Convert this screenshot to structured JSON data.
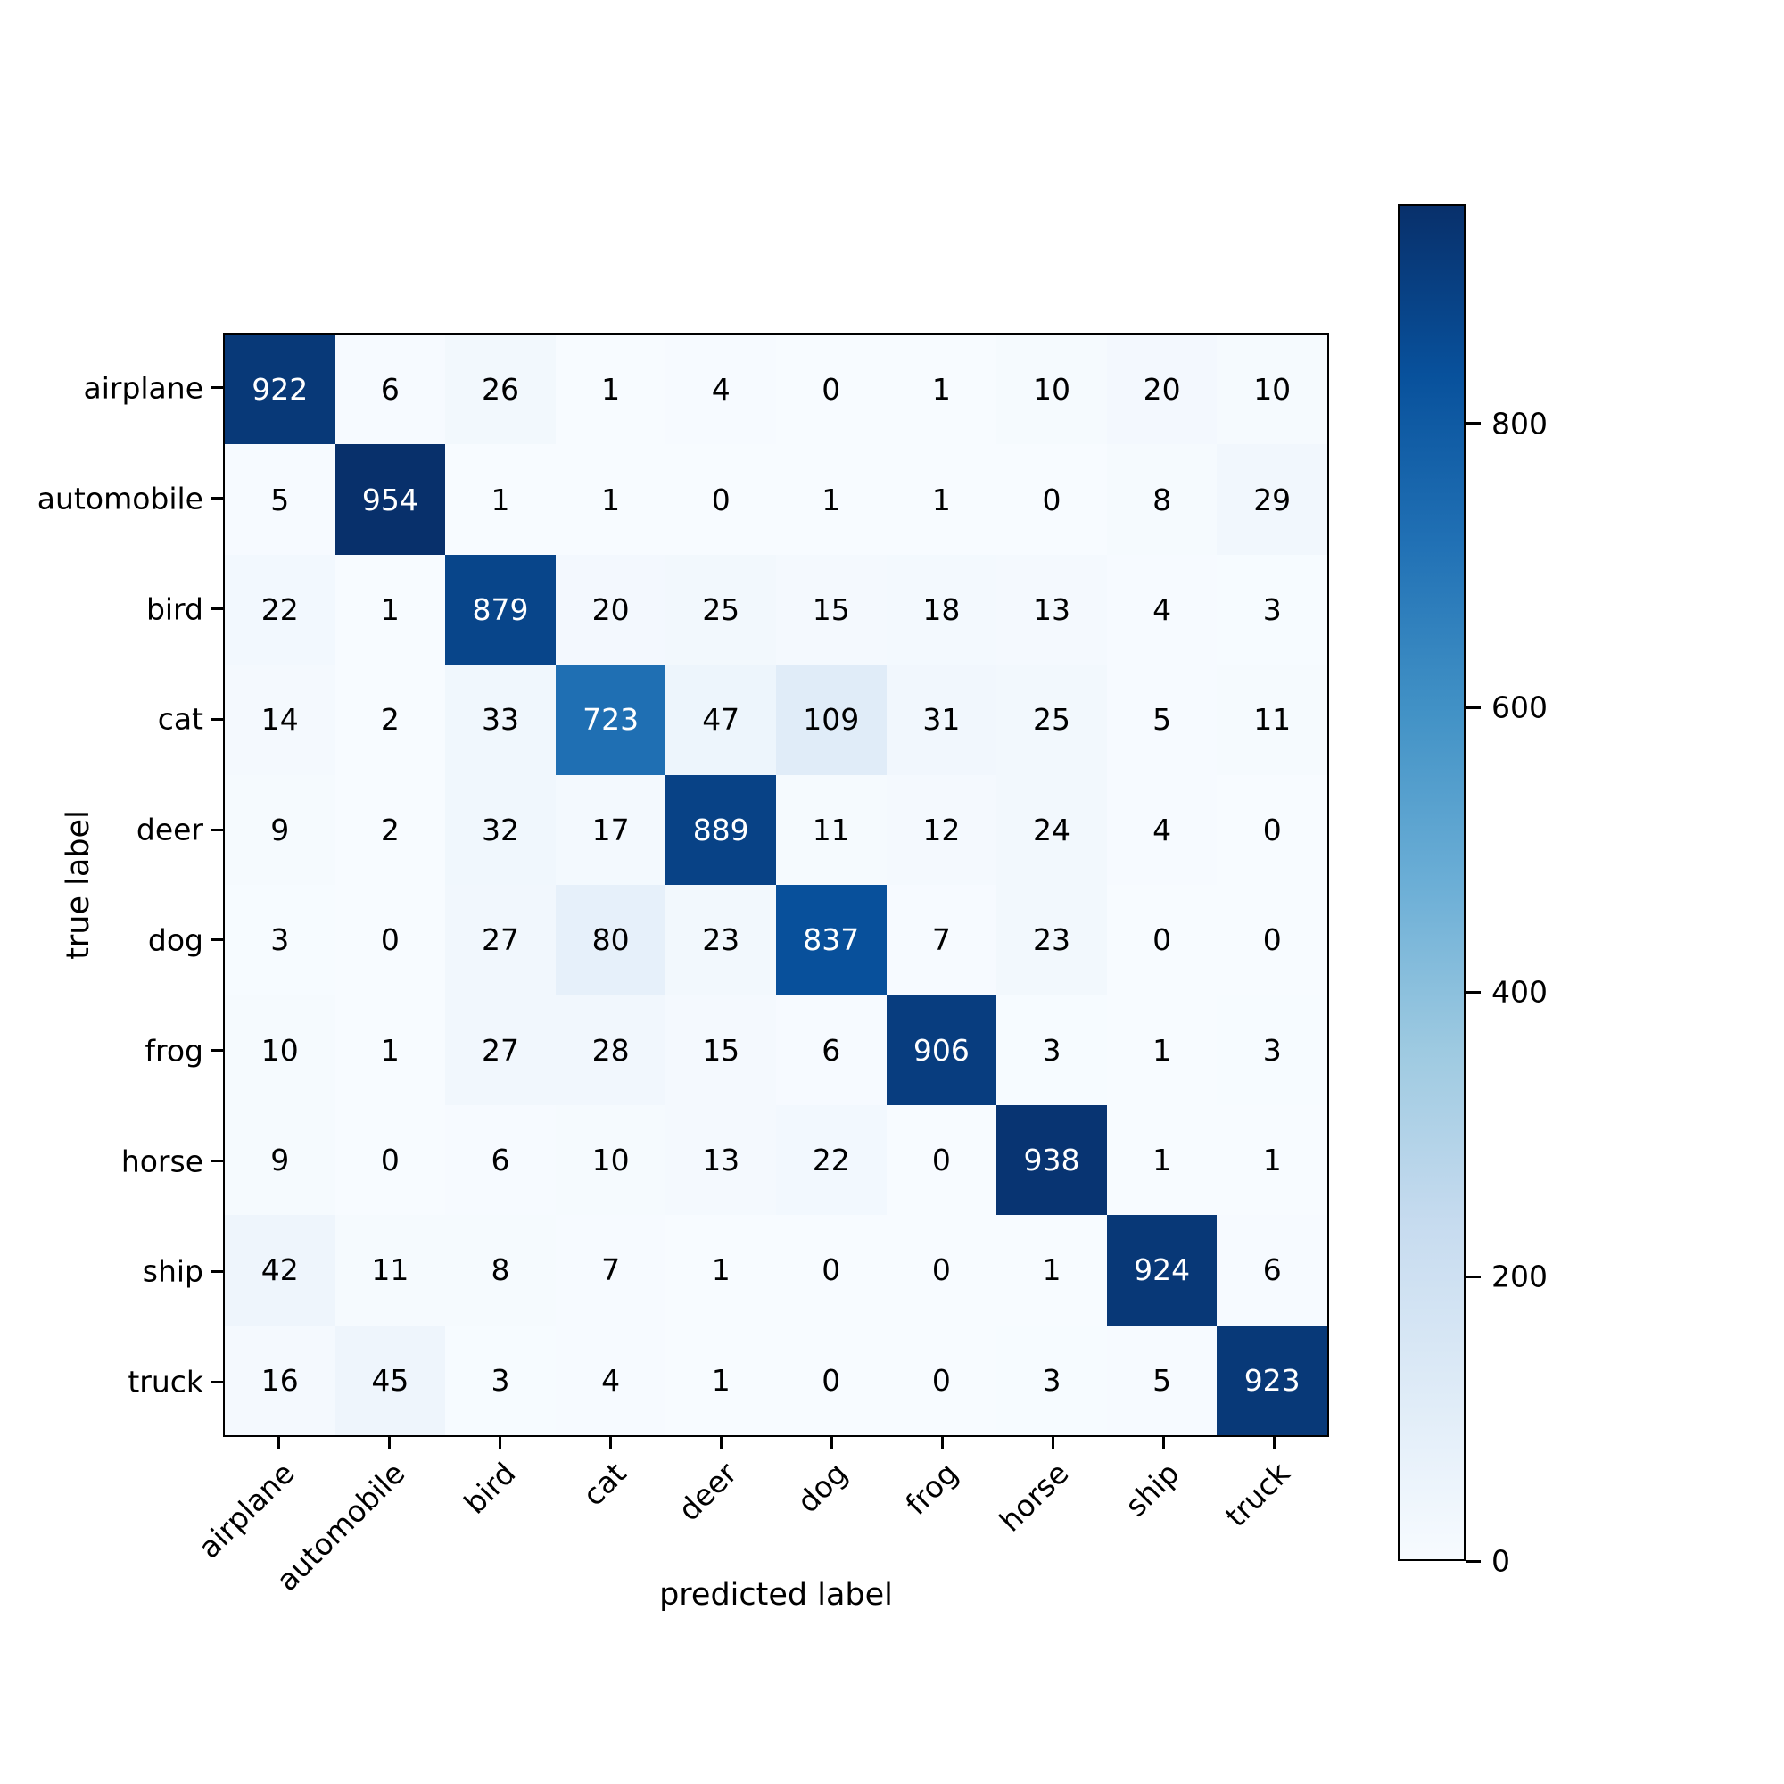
{
  "chart_data": {
    "type": "heatmap",
    "title": "",
    "xlabel": "predicted label",
    "ylabel": "true label",
    "categories": [
      "airplane",
      "automobile",
      "bird",
      "cat",
      "deer",
      "dog",
      "frog",
      "horse",
      "ship",
      "truck"
    ],
    "matrix": [
      [
        922,
        6,
        26,
        1,
        4,
        0,
        1,
        10,
        20,
        10
      ],
      [
        5,
        954,
        1,
        1,
        0,
        1,
        1,
        0,
        8,
        29
      ],
      [
        22,
        1,
        879,
        20,
        25,
        15,
        18,
        13,
        4,
        3
      ],
      [
        14,
        2,
        33,
        723,
        47,
        109,
        31,
        25,
        5,
        11
      ],
      [
        9,
        2,
        32,
        17,
        889,
        11,
        12,
        24,
        4,
        0
      ],
      [
        3,
        0,
        27,
        80,
        23,
        837,
        7,
        23,
        0,
        0
      ],
      [
        10,
        1,
        27,
        28,
        15,
        6,
        906,
        3,
        1,
        3
      ],
      [
        9,
        0,
        6,
        10,
        13,
        22,
        0,
        938,
        1,
        1
      ],
      [
        42,
        11,
        8,
        7,
        1,
        0,
        0,
        1,
        924,
        6
      ],
      [
        16,
        45,
        3,
        4,
        1,
        0,
        0,
        3,
        5,
        923
      ]
    ],
    "colormap": "Blues",
    "colorbar": {
      "vmin": 0,
      "vmax": 954,
      "ticks": [
        0,
        200,
        400,
        600,
        800
      ]
    },
    "legend_position": "right",
    "grid": false
  },
  "colors": {
    "background": "#ffffff",
    "cmap_stops": [
      "#f7fbff",
      "#deebf7",
      "#c6dbef",
      "#9ecae1",
      "#6baed6",
      "#4292c6",
      "#2171b5",
      "#08519c",
      "#08306b"
    ],
    "cell_text_dark": "#000000",
    "cell_text_light": "#ffffff",
    "axis_color": "#000000"
  }
}
